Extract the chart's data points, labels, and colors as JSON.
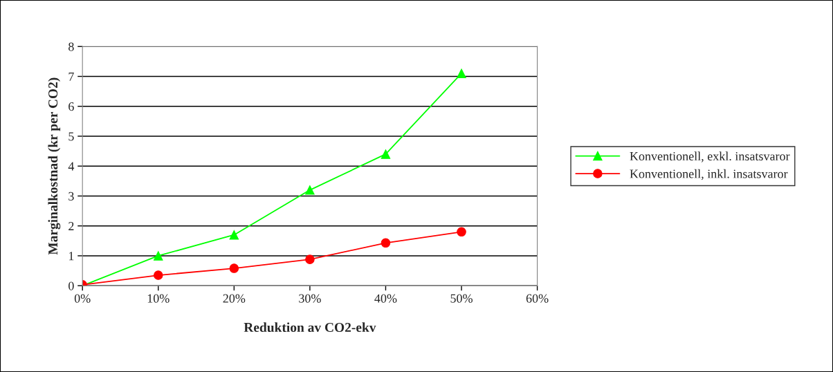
{
  "chart_data": {
    "type": "line",
    "xlabel": "Reduktion av CO2-ekv",
    "ylabel": "Marginalkostnad (kr per CO2)",
    "x": [
      0,
      10,
      20,
      30,
      40,
      50
    ],
    "series": [
      {
        "name": "Konventionell, exkl. insatsvaror",
        "color": "#00ff00",
        "marker": "triangle",
        "values": [
          0,
          1.0,
          1.7,
          3.2,
          4.4,
          7.1
        ]
      },
      {
        "name": "Konventionell, inkl. insatsvaror",
        "color": "#ff0000",
        "marker": "circle",
        "values": [
          0.03,
          0.35,
          0.58,
          0.88,
          1.43,
          1.8
        ]
      }
    ],
    "xlim": [
      0,
      60
    ],
    "xticks": [
      {
        "value": 0,
        "label": "0%"
      },
      {
        "value": 10,
        "label": "10%"
      },
      {
        "value": 20,
        "label": "20%"
      },
      {
        "value": 30,
        "label": "30%"
      },
      {
        "value": 40,
        "label": "40%"
      },
      {
        "value": 50,
        "label": "50%"
      },
      {
        "value": 60,
        "label": "60%"
      }
    ],
    "ylim": [
      0,
      8
    ],
    "yticks": [
      0,
      1,
      2,
      3,
      4,
      5,
      6,
      7,
      8
    ],
    "grid": "y",
    "legend": "right",
    "line_style": "solid"
  }
}
